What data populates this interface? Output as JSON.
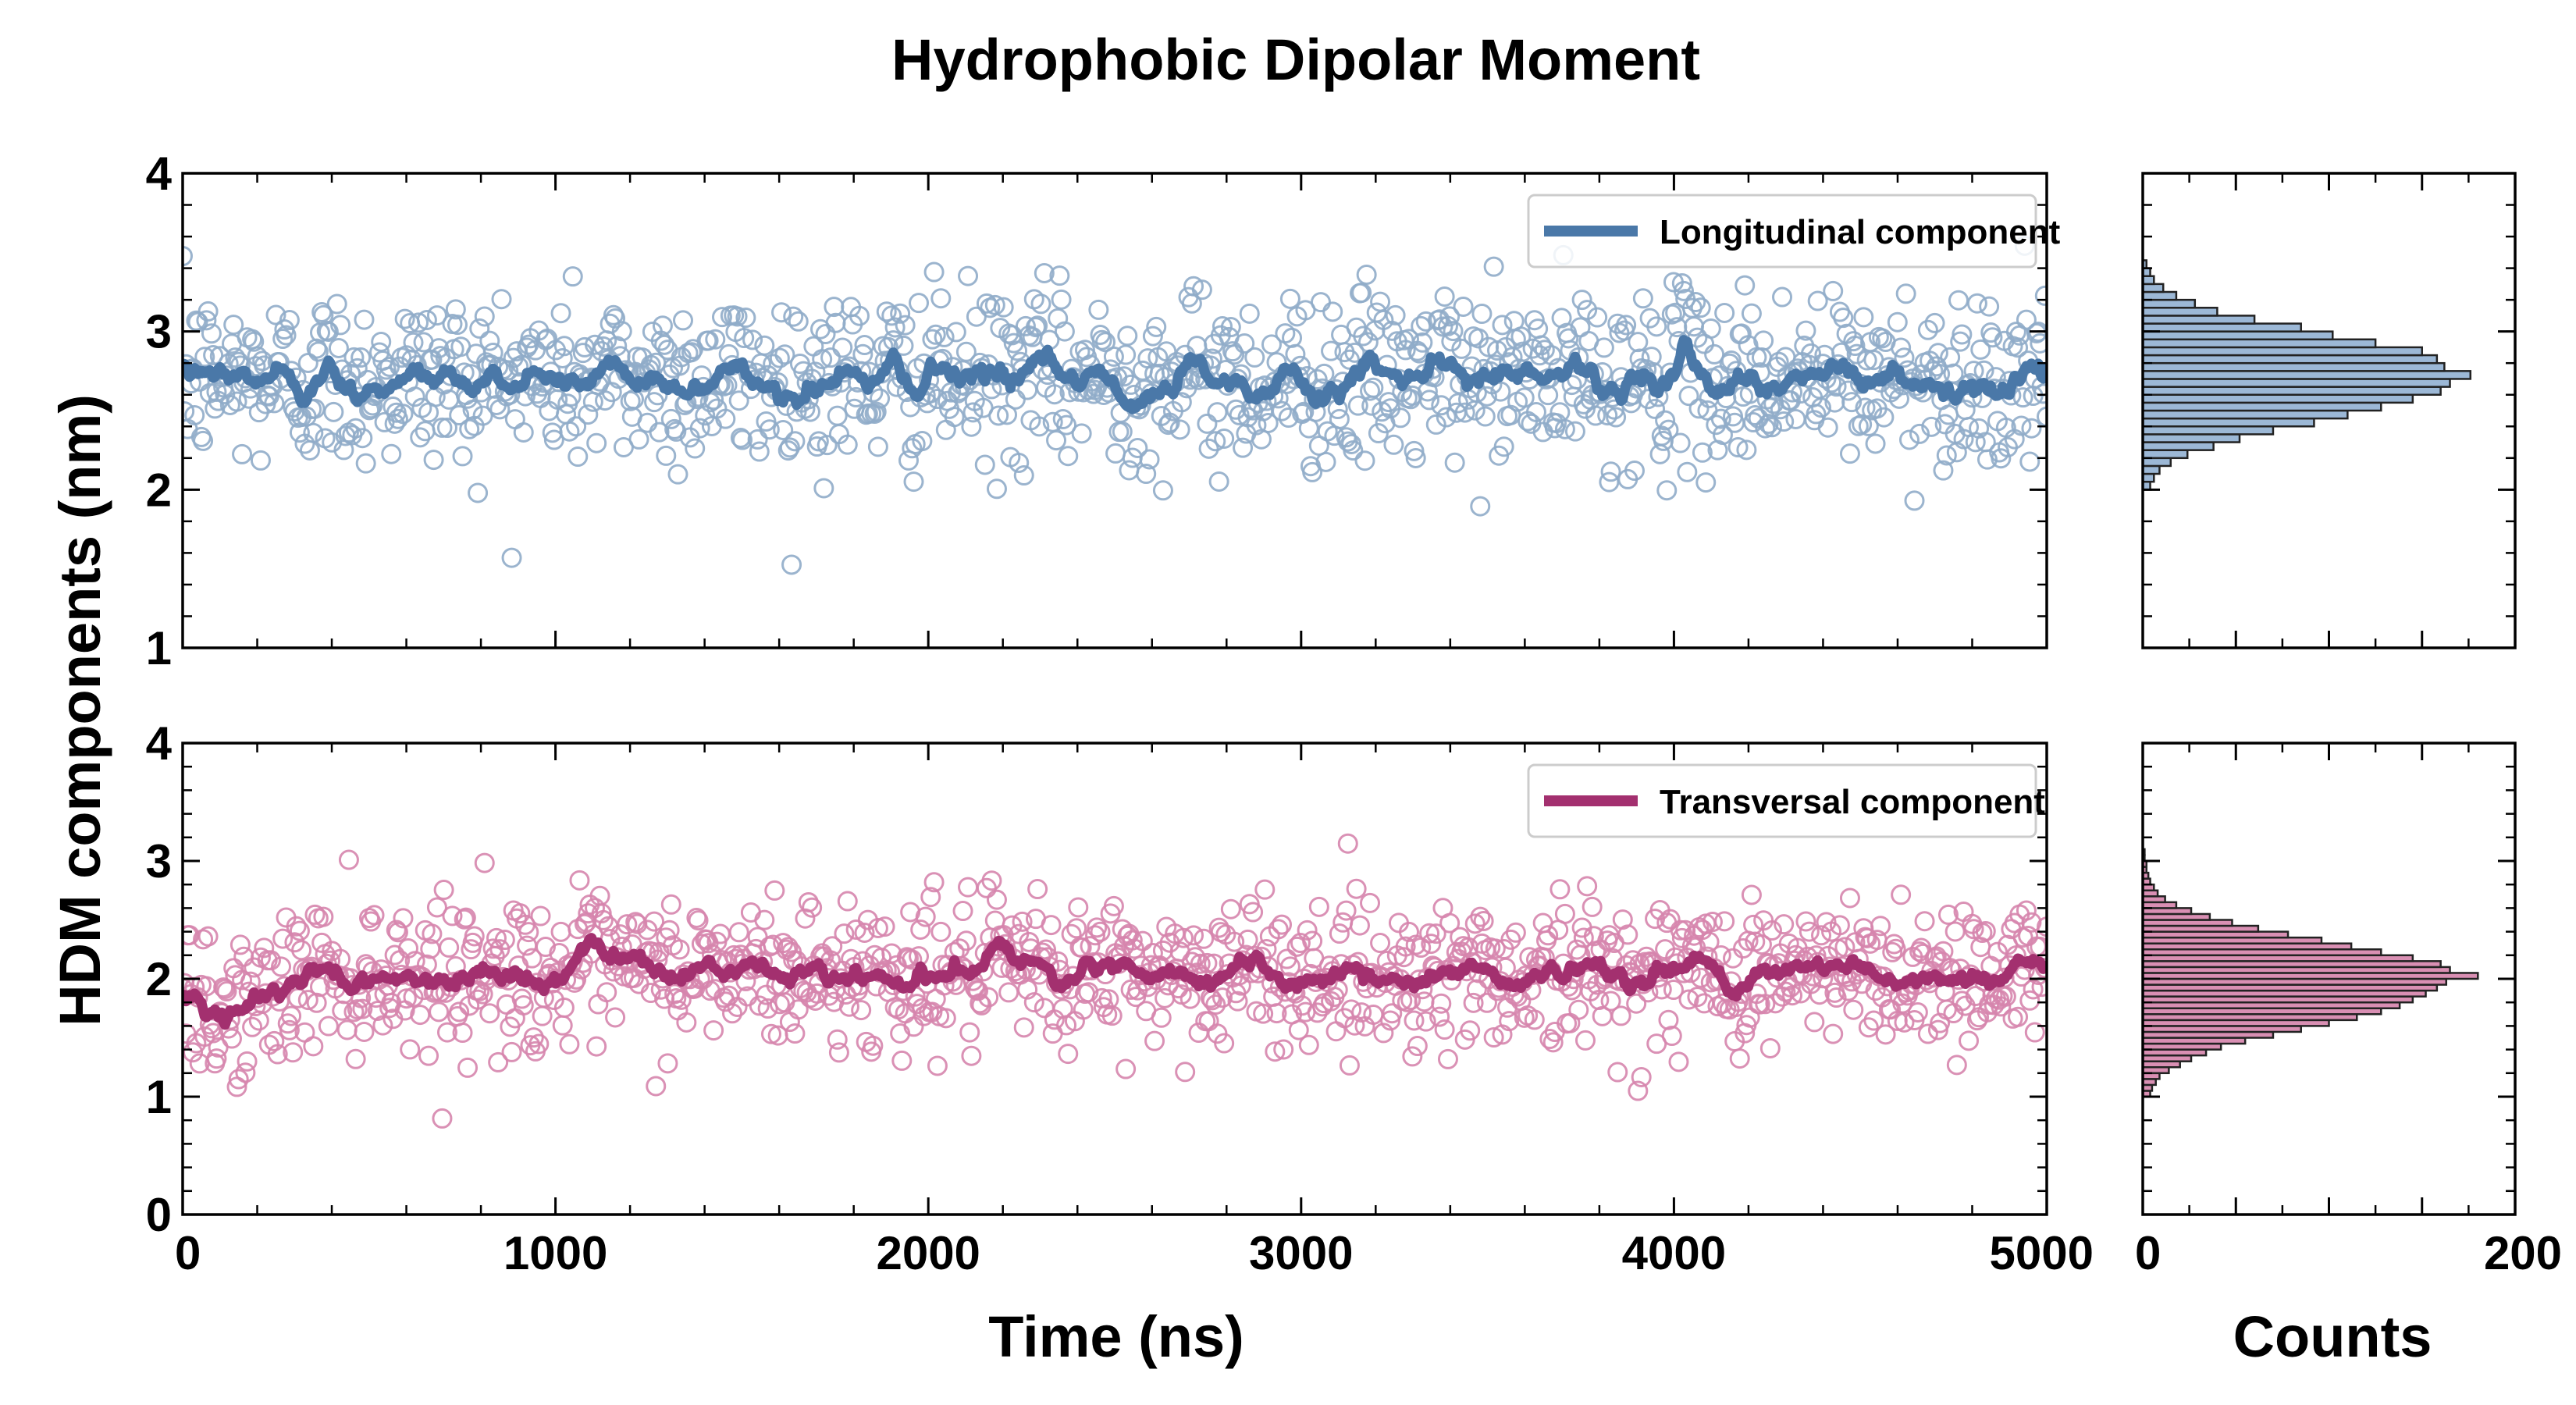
{
  "figure": {
    "title": "Hydrophobic Dipolar Moment",
    "ylabel": "HDM components (nm)",
    "xlabel_time": "Time (ns)",
    "xlabel_counts": "Counts"
  },
  "chart_data": [
    {
      "id": "longitudinal-timeseries",
      "type": "scatter",
      "series": [
        {
          "name": "Longitudinal component",
          "kind": "raw-points",
          "mean": 2.7,
          "sd": 0.28,
          "count": 1100
        },
        {
          "name": "Longitudinal component",
          "kind": "running-average",
          "mean": 2.7
        }
      ],
      "xlim": [
        0,
        5000
      ],
      "ylim": [
        1,
        4
      ],
      "yticks": [
        1,
        2,
        3,
        4
      ],
      "xticks": [
        0,
        1000,
        2000,
        3000,
        4000,
        5000
      ],
      "legend": "top-right",
      "color": "#4a78a8",
      "point_color": "#90acc9"
    },
    {
      "id": "transversal-timeseries",
      "type": "scatter",
      "series": [
        {
          "name": "Transversal component",
          "kind": "raw-points",
          "mean": 2.05,
          "sd": 0.32,
          "count": 1100
        },
        {
          "name": "Transversal component",
          "kind": "running-average",
          "mean": 2.05,
          "initial": 1.7,
          "initial_until": 300
        }
      ],
      "xlim": [
        0,
        5000
      ],
      "ylim": [
        0,
        4
      ],
      "yticks": [
        0,
        1,
        2,
        3,
        4
      ],
      "xticks": [
        0,
        1000,
        2000,
        3000,
        4000,
        5000
      ],
      "xtick_labels": [
        "0",
        "1000",
        "2000",
        "3000",
        "4000",
        "5000"
      ],
      "legend": "top-right",
      "color": "#a3306f",
      "point_color": "#d685ad"
    },
    {
      "id": "longitudinal-histogram",
      "type": "bar",
      "orientation": "horizontal",
      "bin_width": 0.05,
      "bins": [
        {
          "y": 2.0,
          "count": 4
        },
        {
          "y": 2.05,
          "count": 6
        },
        {
          "y": 2.1,
          "count": 9
        },
        {
          "y": 2.15,
          "count": 15
        },
        {
          "y": 2.2,
          "count": 24
        },
        {
          "y": 2.25,
          "count": 38
        },
        {
          "y": 2.3,
          "count": 52
        },
        {
          "y": 2.35,
          "count": 70
        },
        {
          "y": 2.4,
          "count": 92
        },
        {
          "y": 2.45,
          "count": 110
        },
        {
          "y": 2.5,
          "count": 128
        },
        {
          "y": 2.55,
          "count": 145
        },
        {
          "y": 2.6,
          "count": 160
        },
        {
          "y": 2.65,
          "count": 165
        },
        {
          "y": 2.7,
          "count": 176
        },
        {
          "y": 2.75,
          "count": 162
        },
        {
          "y": 2.8,
          "count": 158
        },
        {
          "y": 2.85,
          "count": 150
        },
        {
          "y": 2.9,
          "count": 125
        },
        {
          "y": 2.95,
          "count": 102
        },
        {
          "y": 3.0,
          "count": 85
        },
        {
          "y": 3.05,
          "count": 60
        },
        {
          "y": 3.1,
          "count": 40
        },
        {
          "y": 3.15,
          "count": 28
        },
        {
          "y": 3.2,
          "count": 18
        },
        {
          "y": 3.25,
          "count": 11
        },
        {
          "y": 3.3,
          "count": 6
        },
        {
          "y": 3.35,
          "count": 4
        },
        {
          "y": 3.4,
          "count": 2
        }
      ],
      "xlim": [
        0,
        200
      ],
      "ylim": [
        1,
        4
      ],
      "color": "#9cb8d6"
    },
    {
      "id": "transversal-histogram",
      "type": "bar",
      "orientation": "horizontal",
      "bin_width": 0.05,
      "bins": [
        {
          "y": 1.0,
          "count": 4
        },
        {
          "y": 1.05,
          "count": 5
        },
        {
          "y": 1.1,
          "count": 7
        },
        {
          "y": 1.15,
          "count": 9
        },
        {
          "y": 1.2,
          "count": 14
        },
        {
          "y": 1.25,
          "count": 20
        },
        {
          "y": 1.3,
          "count": 26
        },
        {
          "y": 1.35,
          "count": 34
        },
        {
          "y": 1.4,
          "count": 42
        },
        {
          "y": 1.45,
          "count": 55
        },
        {
          "y": 1.5,
          "count": 70
        },
        {
          "y": 1.55,
          "count": 85
        },
        {
          "y": 1.6,
          "count": 100
        },
        {
          "y": 1.65,
          "count": 115
        },
        {
          "y": 1.7,
          "count": 128
        },
        {
          "y": 1.75,
          "count": 138
        },
        {
          "y": 1.8,
          "count": 145
        },
        {
          "y": 1.85,
          "count": 152
        },
        {
          "y": 1.9,
          "count": 158
        },
        {
          "y": 1.95,
          "count": 163
        },
        {
          "y": 2.0,
          "count": 180
        },
        {
          "y": 2.05,
          "count": 165
        },
        {
          "y": 2.1,
          "count": 160
        },
        {
          "y": 2.15,
          "count": 145
        },
        {
          "y": 2.2,
          "count": 128
        },
        {
          "y": 2.25,
          "count": 112
        },
        {
          "y": 2.3,
          "count": 96
        },
        {
          "y": 2.35,
          "count": 78
        },
        {
          "y": 2.4,
          "count": 62
        },
        {
          "y": 2.45,
          "count": 48
        },
        {
          "y": 2.5,
          "count": 36
        },
        {
          "y": 2.55,
          "count": 26
        },
        {
          "y": 2.6,
          "count": 18
        },
        {
          "y": 2.65,
          "count": 12
        },
        {
          "y": 2.7,
          "count": 8
        },
        {
          "y": 2.75,
          "count": 6
        },
        {
          "y": 2.8,
          "count": 4
        },
        {
          "y": 2.85,
          "count": 3
        },
        {
          "y": 2.9,
          "count": 2
        },
        {
          "y": 2.95,
          "count": 2
        },
        {
          "y": 3.0,
          "count": 1
        },
        {
          "y": 3.05,
          "count": 1
        }
      ],
      "xlim": [
        0,
        200
      ],
      "ylim": [
        0,
        4
      ],
      "xticks": [
        0,
        200
      ],
      "xtick_labels": [
        "0",
        "200"
      ],
      "color": "#d98fb3"
    }
  ]
}
